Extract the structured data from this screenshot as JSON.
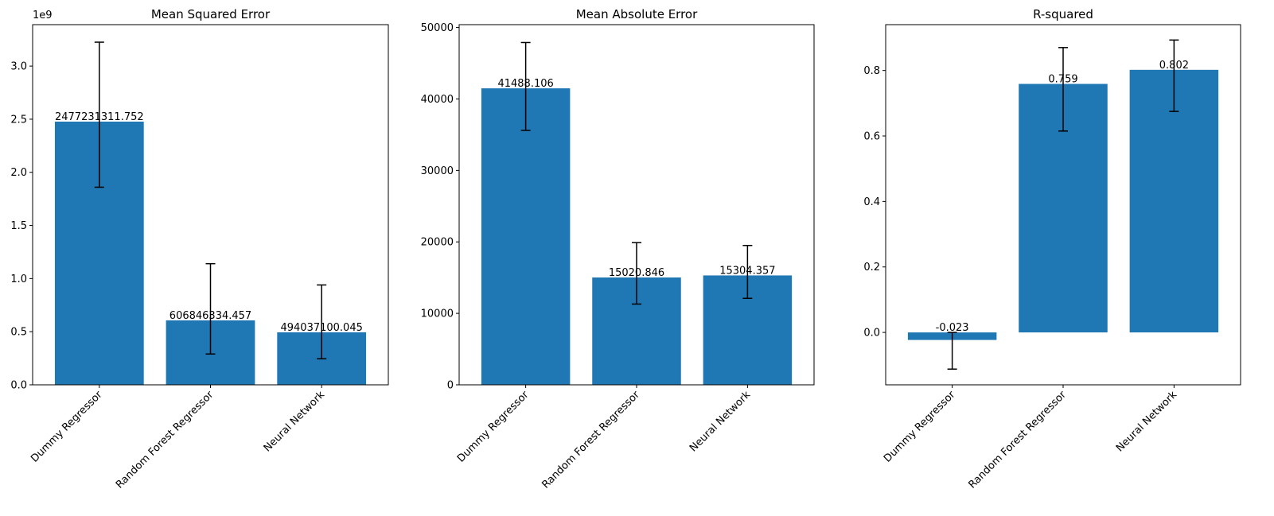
{
  "colors": {
    "bar": "#1f77b4",
    "error_bar": "#000000",
    "axes": "#000000"
  },
  "chart_data": [
    {
      "type": "bar",
      "title": "Mean Squared Error",
      "categories": [
        "Dummy Regressor",
        "Random Forest Regressor",
        "Neural Network"
      ],
      "values": [
        2477231311.752,
        606846334.457,
        494037100.045
      ],
      "value_labels": [
        "2477231311.752",
        "606846334.457",
        "494037100.045"
      ],
      "error_low": [
        1860000000,
        290000000,
        245000000
      ],
      "error_high": [
        3225000000,
        1140000000,
        940000000
      ],
      "ylim": [
        0,
        3390000000
      ],
      "yticks": [
        0,
        500000000,
        1000000000,
        1500000000,
        2000000000,
        2500000000,
        3000000000
      ],
      "ytick_labels": [
        "0.0",
        "0.5",
        "1.0",
        "1.5",
        "2.0",
        "2.5",
        "3.0"
      ],
      "offset_text": "1e9",
      "xtick_rotation": 45
    },
    {
      "type": "bar",
      "title": "Mean Absolute Error",
      "categories": [
        "Dummy Regressor",
        "Random Forest Regressor",
        "Neural Network"
      ],
      "values": [
        41488.106,
        15020.846,
        15304.357
      ],
      "value_labels": [
        "41488.106",
        "15020.846",
        "15304.357"
      ],
      "error_low": [
        35600,
        11300,
        12100
      ],
      "error_high": [
        47900,
        19900,
        19500
      ],
      "ylim": [
        0,
        50400
      ],
      "yticks": [
        0,
        10000,
        20000,
        30000,
        40000,
        50000
      ],
      "ytick_labels": [
        "0",
        "10000",
        "20000",
        "30000",
        "40000",
        "50000"
      ],
      "offset_text": "",
      "xtick_rotation": 45
    },
    {
      "type": "bar",
      "title": "R-squared",
      "categories": [
        "Dummy Regressor",
        "Random Forest Regressor",
        "Neural Network"
      ],
      "values": [
        -0.023,
        0.759,
        0.802
      ],
      "value_labels": [
        "-0.023",
        "0.759",
        "0.802"
      ],
      "error_low": [
        -0.112,
        0.615,
        0.675
      ],
      "error_high": [
        0.0,
        0.87,
        0.893
      ],
      "ylim": [
        -0.16,
        0.94
      ],
      "yticks": [
        0.0,
        0.2,
        0.4,
        0.6,
        0.8
      ],
      "ytick_labels": [
        "0.0",
        "0.2",
        "0.4",
        "0.6",
        "0.8"
      ],
      "offset_text": "",
      "xtick_rotation": 45
    }
  ]
}
